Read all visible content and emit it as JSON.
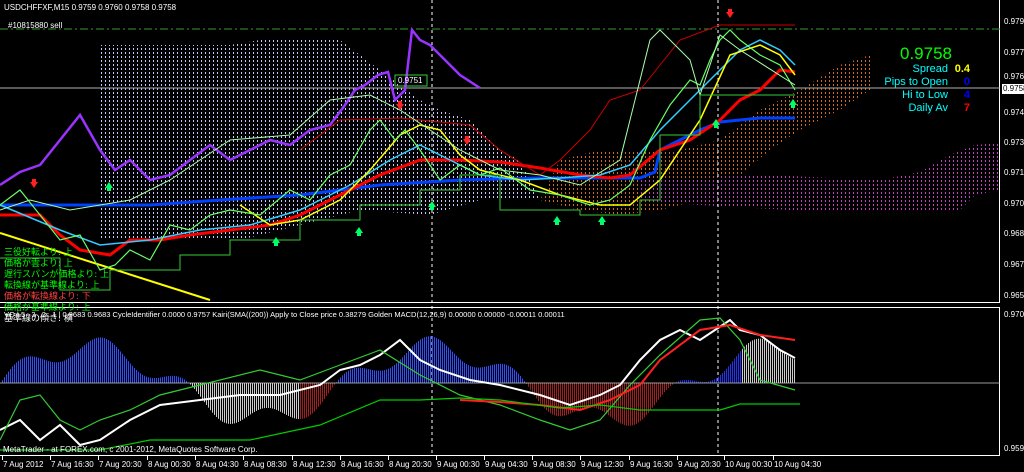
{
  "header": {
    "symbol_line": "USDCHFFXF,M15  0.9759 0.9760 0.9758 0.9758",
    "order_label": "#10815880 sell"
  },
  "info_panel": {
    "price": "0.9758",
    "rows": [
      {
        "label": "Spread",
        "value": "0.4",
        "color": "#ffff00"
      },
      {
        "label": "Pips to Open",
        "value": "0",
        "color": "#0000ff"
      },
      {
        "label": "Hi to Low",
        "value": "4",
        "color": "#0000ff"
      },
      {
        "label": "Daily Av",
        "value": "7",
        "color": "#ff0000"
      }
    ],
    "price_color": "#00ff00",
    "label_color": "#00ffff"
  },
  "price_axis": [
    "0.9790",
    "0.9775",
    "0.9760",
    "0.9745",
    "0.9730",
    "0.9715",
    "0.9700",
    "0.9685",
    "0.9670",
    "0.9655"
  ],
  "current_price_tag": "0.9758",
  "box_label": "0.9751",
  "ichimoku_status": [
    {
      "text": "三役好転より: 上",
      "color": "#00ff00"
    },
    {
      "text": "価格が雲より: 上",
      "color": "#00ff00"
    },
    {
      "text": "遅行スパンが価格より: 上",
      "color": "#00ff00"
    },
    {
      "text": "転換線が基準線より: 上",
      "color": "#00ff00"
    },
    {
      "text": "価格が転換線より: 下",
      "color": "#ff4040"
    },
    {
      "text": "価格が基準線より: 上",
      "color": "#00ff00"
    },
    {
      "text": "基準線の傾き: 横",
      "color": "#ffffff"
    }
  ],
  "subwindow": {
    "header": "VQ | 5 . 3 . 2 . 1 |  0.9683 0.9683  CycleIdentifier 0.0000 0.9757  Kairi(SMA((200)) Apply to Close price 0.38279  Golden MACD(12,26,9) 0.00000 0.00000 -0.00011 0.00011",
    "axis_top": "0.9702",
    "axis_bottom": "0.9598"
  },
  "copyright": "MetaTrader - at FOREX.com, c 2001-2012, MetaQuotes Software Corp.",
  "time_axis": [
    "7 Aug 2012",
    "7 Aug 16:30",
    "7 Aug 20:30",
    "8 Aug 00:30",
    "8 Aug 04:30",
    "8 Aug 08:30",
    "8 Aug 12:30",
    "8 Aug 16:30",
    "8 Aug 20:30",
    "9 Aug 00:30",
    "9 Aug 04:30",
    "9 Aug 08:30",
    "9 Aug 12:30",
    "9 Aug 16:30",
    "9 Aug 20:30",
    "10 Aug 00:30",
    "10 Aug 04:30"
  ]
}
